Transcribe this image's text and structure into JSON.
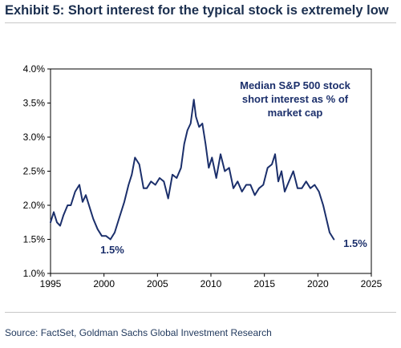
{
  "title": "Exhibit 5: Short interest for the typical stock is extremely low",
  "source": "Source: FactSet, Goldman Sachs Global Investment Research",
  "colors": {
    "line": "#1b2f6b",
    "title": "#1b2f4f",
    "axis": "#000000"
  },
  "chart_data": {
    "type": "line",
    "title": "Exhibit 5: Short interest for the typical stock is extremely low",
    "xlim": [
      1995,
      2025
    ],
    "ylim": [
      1.0,
      4.0
    ],
    "x_ticks": [
      {
        "value": 1995,
        "label": "1995"
      },
      {
        "value": 2000,
        "label": "2000"
      },
      {
        "value": 2005,
        "label": "2005"
      },
      {
        "value": 2010,
        "label": "2010"
      },
      {
        "value": 2015,
        "label": "2015"
      },
      {
        "value": 2020,
        "label": "2020"
      },
      {
        "value": 2025,
        "label": "2025"
      }
    ],
    "y_ticks": [
      {
        "value": 1.0,
        "label": "1.0%"
      },
      {
        "value": 1.5,
        "label": "1.5%"
      },
      {
        "value": 2.0,
        "label": "2.0%"
      },
      {
        "value": 2.5,
        "label": "2.5%"
      },
      {
        "value": 3.0,
        "label": "3.0%"
      },
      {
        "value": 3.5,
        "label": "3.5%"
      },
      {
        "value": 4.0,
        "label": "4.0%"
      }
    ],
    "grid": false,
    "legend": "none",
    "series": [
      {
        "name": "Median S&P 500 stock short interest as % of market cap",
        "x": [
          1995.0,
          1995.3,
          1995.6,
          1995.9,
          1996.2,
          1996.6,
          1996.9,
          1997.3,
          1997.7,
          1998.0,
          1998.3,
          1998.7,
          1999.0,
          1999.4,
          1999.8,
          2000.2,
          2000.6,
          2001.0,
          2001.4,
          2001.9,
          2002.3,
          2002.6,
          2002.9,
          2003.3,
          2003.7,
          2004.0,
          2004.4,
          2004.8,
          2005.2,
          2005.6,
          2006.0,
          2006.4,
          2006.8,
          2007.2,
          2007.5,
          2007.8,
          2008.1,
          2008.4,
          2008.6,
          2008.9,
          2009.2,
          2009.5,
          2009.8,
          2010.1,
          2010.5,
          2010.9,
          2011.3,
          2011.7,
          2012.1,
          2012.5,
          2012.9,
          2013.3,
          2013.7,
          2014.1,
          2014.5,
          2014.9,
          2015.3,
          2015.7,
          2016.0,
          2016.3,
          2016.6,
          2016.9,
          2017.3,
          2017.7,
          2018.1,
          2018.5,
          2018.9,
          2019.3,
          2019.7,
          2020.1,
          2020.5,
          2020.8,
          2021.1,
          2021.5
        ],
        "y": [
          1.75,
          1.9,
          1.75,
          1.7,
          1.85,
          2.0,
          2.0,
          2.2,
          2.3,
          2.05,
          2.15,
          1.95,
          1.8,
          1.65,
          1.55,
          1.55,
          1.5,
          1.6,
          1.8,
          2.05,
          2.3,
          2.45,
          2.7,
          2.6,
          2.25,
          2.25,
          2.35,
          2.3,
          2.4,
          2.35,
          2.1,
          2.45,
          2.4,
          2.55,
          2.9,
          3.1,
          3.2,
          3.55,
          3.3,
          3.15,
          3.2,
          2.9,
          2.55,
          2.7,
          2.4,
          2.75,
          2.5,
          2.55,
          2.25,
          2.35,
          2.2,
          2.3,
          2.3,
          2.15,
          2.25,
          2.3,
          2.55,
          2.6,
          2.75,
          2.35,
          2.5,
          2.2,
          2.35,
          2.5,
          2.25,
          2.25,
          2.35,
          2.25,
          2.3,
          2.2,
          2.0,
          1.8,
          1.6,
          1.5
        ]
      }
    ],
    "annotations": [
      {
        "text_lines": [
          "Median S&P 500 stock",
          "short interest as % of",
          "market cap"
        ]
      },
      {
        "text": "1.5%",
        "x": 2000.5
      },
      {
        "text": "1.5%",
        "x": 2023.0
      }
    ]
  }
}
